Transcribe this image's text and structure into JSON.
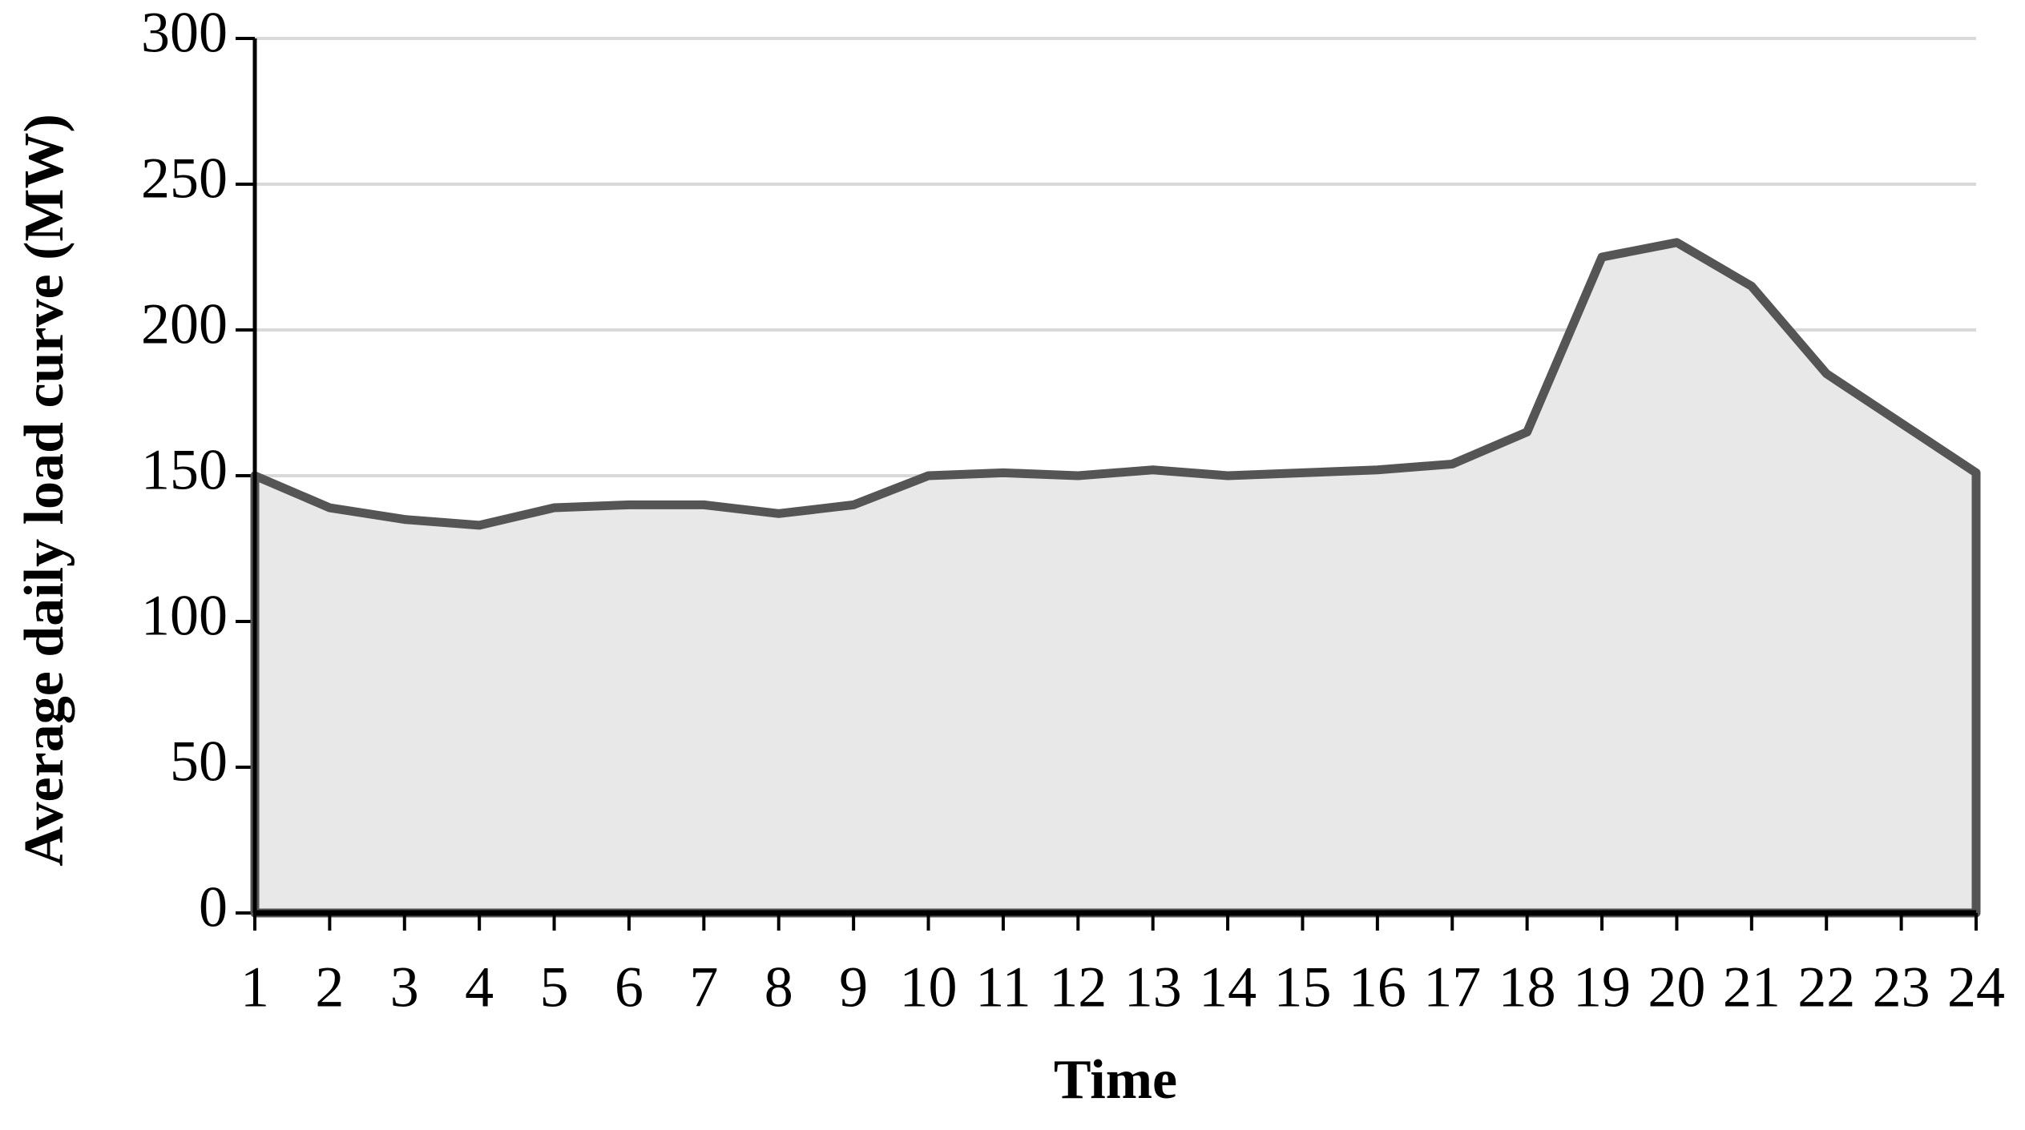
{
  "chart_data": {
    "type": "area",
    "x_label": "Time",
    "y_label": "Average daily load curve (MW)",
    "x": [
      1,
      2,
      3,
      4,
      5,
      6,
      7,
      8,
      9,
      10,
      11,
      12,
      13,
      14,
      15,
      16,
      17,
      18,
      19,
      20,
      21,
      22,
      23,
      24
    ],
    "values": [
      150,
      139,
      135,
      133,
      139,
      140,
      140,
      137,
      140,
      150,
      151,
      150,
      152,
      150,
      151,
      152,
      154,
      165,
      225,
      230,
      215,
      185,
      168,
      151
    ],
    "color": "#555555",
    "fill": "#e8e8e8",
    "xlim": [
      1,
      24
    ],
    "xticks": [
      1,
      2,
      3,
      4,
      5,
      6,
      7,
      8,
      9,
      10,
      11,
      12,
      13,
      14,
      15,
      16,
      17,
      18,
      19,
      20,
      21,
      22,
      23,
      24
    ],
    "ylim": [
      0,
      300
    ],
    "yticks": [
      0,
      50,
      100,
      150,
      200,
      250,
      300
    ],
    "grid": true
  }
}
